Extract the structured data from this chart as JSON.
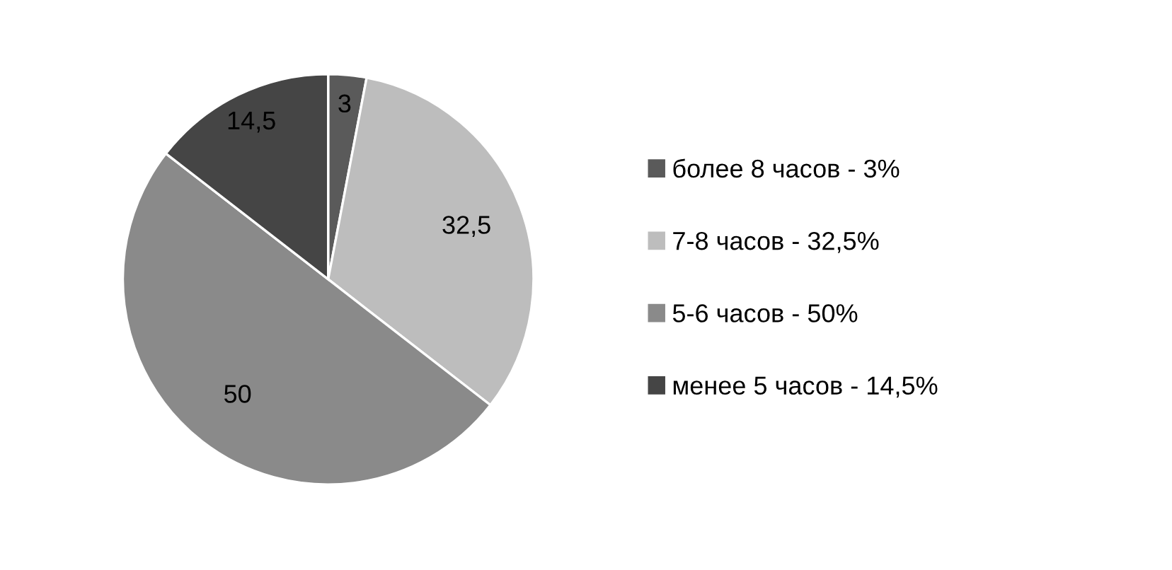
{
  "chart_data": {
    "type": "pie",
    "categories": [
      "более 8 часов - 3%",
      "7-8 часов - 32,5%",
      "5-6 часов - 50%",
      "менее 5 часов - 14,5%"
    ],
    "values": [
      3,
      32.5,
      50,
      14.5
    ],
    "value_labels": [
      "3",
      "32,5",
      "50",
      "14,5"
    ],
    "colors": [
      "#5a5a5a",
      "#bdbdbd",
      "#8a8a8a",
      "#454545"
    ],
    "legend": "right"
  }
}
